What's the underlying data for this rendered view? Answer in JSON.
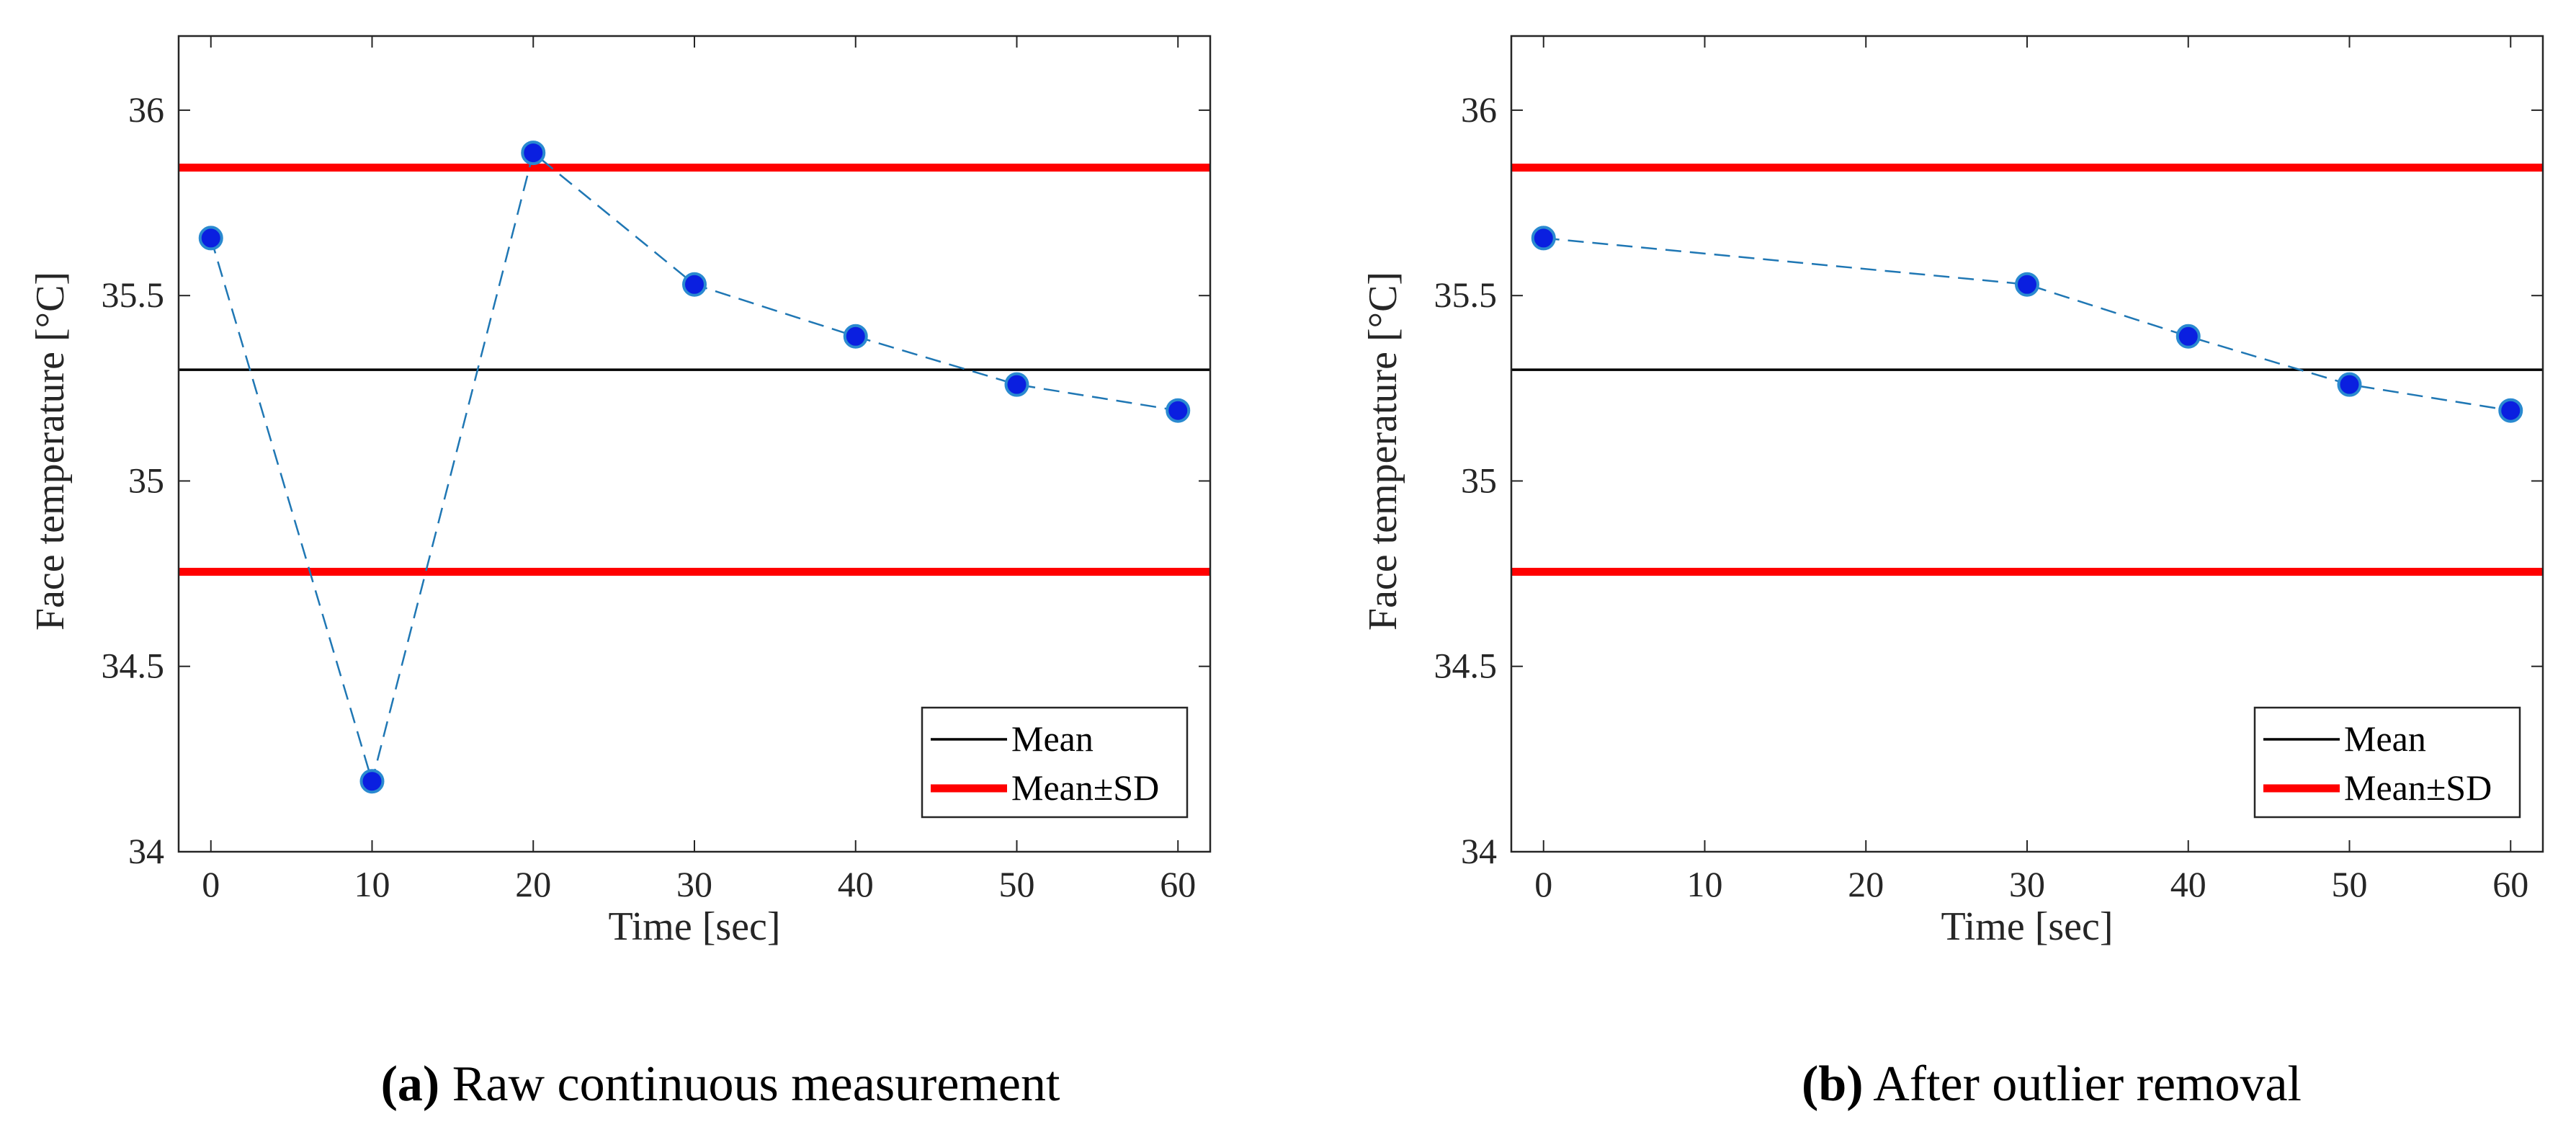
{
  "chart_data": [
    {
      "type": "line",
      "panel": "a",
      "caption_tag": "(a)",
      "caption_text": "Raw continuous measurement",
      "xlabel": "Time [sec]",
      "ylabel": "Face temperature [°C]",
      "xlim": [
        -2,
        62
      ],
      "ylim": [
        34,
        36.2
      ],
      "xticks": [
        0,
        10,
        20,
        30,
        40,
        50,
        60
      ],
      "yticks": [
        34,
        34.5,
        35,
        35.5,
        36
      ],
      "ytick_labels": [
        "34",
        "34.5",
        "35",
        "35.5",
        "36"
      ],
      "series": [
        {
          "name": "Face temperature",
          "x": [
            0,
            10,
            20,
            30,
            40,
            50,
            60
          ],
          "values": [
            35.655,
            34.19,
            35.885,
            35.53,
            35.39,
            35.26,
            35.19
          ]
        }
      ],
      "mean": 35.3,
      "mean_plus_sd": 35.845,
      "mean_minus_sd": 34.755,
      "legend": [
        "Mean",
        "Mean±SD"
      ],
      "legend_position": "bottom-right",
      "colors": {
        "marker": "#0a1fe0",
        "marker_edge": "#2a8ad0",
        "line": "#1f77b4",
        "mean": "#000000",
        "sd": "#ff0000"
      }
    },
    {
      "type": "line",
      "panel": "b",
      "caption_tag": "(b)",
      "caption_text": "After outlier removal",
      "xlabel": "Time [sec]",
      "ylabel": "Face temperature [°C]",
      "xlim": [
        -2,
        62
      ],
      "ylim": [
        34,
        36.2
      ],
      "xticks": [
        0,
        10,
        20,
        30,
        40,
        50,
        60
      ],
      "yticks": [
        34,
        34.5,
        35,
        35.5,
        36
      ],
      "ytick_labels": [
        "34",
        "34.5",
        "35",
        "35.5",
        "36"
      ],
      "series": [
        {
          "name": "Face temperature",
          "x": [
            0,
            30,
            40,
            50,
            60
          ],
          "values": [
            35.655,
            35.53,
            35.39,
            35.26,
            35.19
          ]
        }
      ],
      "mean": 35.3,
      "mean_plus_sd": 35.845,
      "mean_minus_sd": 34.755,
      "legend": [
        "Mean",
        "Mean±SD"
      ],
      "legend_position": "bottom-right",
      "colors": {
        "marker": "#0a1fe0",
        "marker_edge": "#2a8ad0",
        "line": "#1f77b4",
        "mean": "#000000",
        "sd": "#ff0000"
      }
    }
  ]
}
